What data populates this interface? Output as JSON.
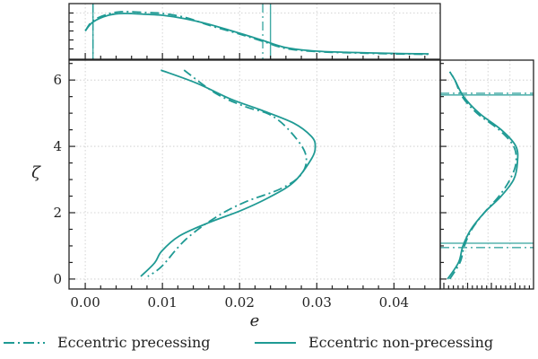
{
  "chart_data": {
    "type": "line",
    "title": "",
    "xlabel": "e",
    "ylabel": "ζ",
    "xlim": [
      -0.0021,
      0.046
    ],
    "ylim": [
      -0.3,
      6.6
    ],
    "xticks": [
      "0.00",
      "0.01",
      "0.02",
      "0.03",
      "0.04"
    ],
    "xtick_values": [
      0.0,
      0.01,
      0.02,
      0.03,
      0.04
    ],
    "yticks": [
      "0",
      "2",
      "4",
      "6"
    ],
    "ytick_values": [
      0,
      2,
      4,
      6
    ],
    "grid": true,
    "legend_position": "bottom",
    "color": "#1f9a94",
    "series": [
      {
        "name": "Eccentric precessing",
        "style": "dashdot",
        "contour": [
          [
            0.0128,
            6.3
          ],
          [
            0.0169,
            5.6
          ],
          [
            0.0207,
            5.2
          ],
          [
            0.0238,
            4.97
          ],
          [
            0.0262,
            4.54
          ],
          [
            0.0285,
            3.8
          ],
          [
            0.0281,
            3.19
          ],
          [
            0.0254,
            2.73
          ],
          [
            0.0207,
            2.32
          ],
          [
            0.0169,
            1.86
          ],
          [
            0.013,
            1.19
          ],
          [
            0.0099,
            0.38
          ],
          [
            0.0081,
            0.08
          ]
        ],
        "e_marginal": [
          [
            0.0,
            0.55
          ],
          [
            0.001,
            0.78
          ],
          [
            0.003,
            0.93
          ],
          [
            0.005,
            0.98
          ],
          [
            0.008,
            0.96
          ],
          [
            0.01,
            0.94
          ],
          [
            0.013,
            0.85
          ],
          [
            0.016,
            0.68
          ],
          [
            0.02,
            0.48
          ],
          [
            0.023,
            0.32
          ],
          [
            0.026,
            0.16
          ],
          [
            0.03,
            0.09
          ],
          [
            0.035,
            0.06
          ],
          [
            0.04,
            0.04
          ],
          [
            0.0445,
            0.03
          ]
        ],
        "e_bounds": [
          0.001,
          0.023
        ],
        "zeta_marginal": [
          [
            0.0,
            0.08
          ],
          [
            0.5,
            0.22
          ],
          [
            1.0,
            0.28
          ],
          [
            1.5,
            0.38
          ],
          [
            2.0,
            0.55
          ],
          [
            2.5,
            0.75
          ],
          [
            3.0,
            0.9
          ],
          [
            3.5,
            0.98
          ],
          [
            4.0,
            0.95
          ],
          [
            4.5,
            0.75
          ],
          [
            5.0,
            0.45
          ],
          [
            5.5,
            0.25
          ],
          [
            6.0,
            0.15
          ],
          [
            6.25,
            0.08
          ]
        ],
        "zeta_bounds": [
          0.95,
          5.6
        ]
      },
      {
        "name": "Eccentric non-precessing",
        "style": "solid",
        "contour": [
          [
            0.0098,
            6.3
          ],
          [
            0.0145,
            5.9
          ],
          [
            0.0188,
            5.43
          ],
          [
            0.0227,
            5.1
          ],
          [
            0.027,
            4.7
          ],
          [
            0.0293,
            4.3
          ],
          [
            0.0298,
            4.0
          ],
          [
            0.0293,
            3.62
          ],
          [
            0.027,
            2.92
          ],
          [
            0.0238,
            2.46
          ],
          [
            0.02,
            2.05
          ],
          [
            0.016,
            1.7
          ],
          [
            0.0122,
            1.3
          ],
          [
            0.0099,
            0.84
          ],
          [
            0.009,
            0.49
          ],
          [
            0.0072,
            0.08
          ]
        ],
        "e_marginal": [
          [
            0.0,
            0.55
          ],
          [
            0.001,
            0.75
          ],
          [
            0.003,
            0.9
          ],
          [
            0.005,
            0.94
          ],
          [
            0.008,
            0.92
          ],
          [
            0.01,
            0.9
          ],
          [
            0.013,
            0.82
          ],
          [
            0.016,
            0.7
          ],
          [
            0.02,
            0.5
          ],
          [
            0.023,
            0.34
          ],
          [
            0.026,
            0.18
          ],
          [
            0.03,
            0.1
          ],
          [
            0.035,
            0.07
          ],
          [
            0.04,
            0.05
          ],
          [
            0.0445,
            0.04
          ]
        ],
        "e_bounds": [
          0.001,
          0.024
        ],
        "zeta_marginal": [
          [
            0.0,
            0.05
          ],
          [
            0.5,
            0.2
          ],
          [
            1.0,
            0.26
          ],
          [
            1.5,
            0.37
          ],
          [
            2.0,
            0.55
          ],
          [
            2.5,
            0.78
          ],
          [
            3.0,
            0.95
          ],
          [
            3.5,
            1.0
          ],
          [
            4.0,
            0.98
          ],
          [
            4.5,
            0.78
          ],
          [
            5.0,
            0.48
          ],
          [
            5.5,
            0.27
          ],
          [
            6.0,
            0.15
          ],
          [
            6.25,
            0.08
          ]
        ],
        "zeta_bounds": [
          1.08,
          5.55
        ]
      }
    ]
  }
}
